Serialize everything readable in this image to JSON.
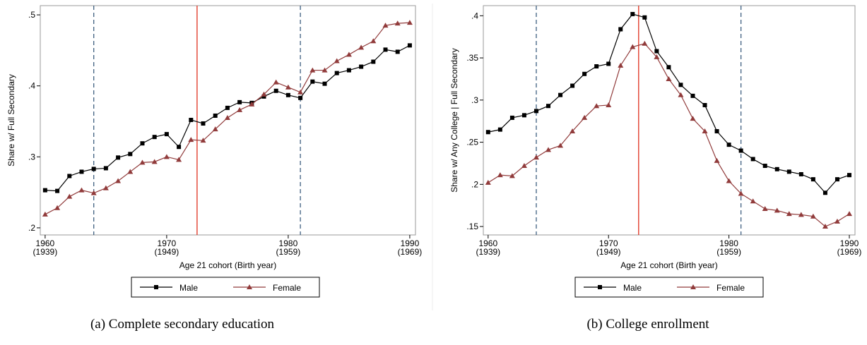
{
  "chart_data": [
    {
      "type": "line",
      "caption": "(a)  Complete secondary education",
      "y_label": "Share w/ Full Secondary",
      "x_label": "Age 21 cohort (Birth year)",
      "x": [
        1960,
        1961,
        1962,
        1963,
        1964,
        1965,
        1966,
        1967,
        1968,
        1969,
        1970,
        1971,
        1972,
        1973,
        1974,
        1975,
        1976,
        1977,
        1978,
        1979,
        1980,
        1981,
        1982,
        1983,
        1984,
        1985,
        1986,
        1987,
        1988,
        1989,
        1990
      ],
      "series": [
        {
          "name": "Male",
          "color": "#000000",
          "marker": "square",
          "values": [
            0.253,
            0.252,
            0.273,
            0.279,
            0.283,
            0.284,
            0.299,
            0.304,
            0.319,
            0.328,
            0.332,
            0.314,
            0.352,
            0.347,
            0.358,
            0.369,
            0.377,
            0.376,
            0.385,
            0.393,
            0.387,
            0.383,
            0.406,
            0.403,
            0.418,
            0.422,
            0.427,
            0.434,
            0.451,
            0.448,
            0.457
          ]
        },
        {
          "name": "Female",
          "color": "#913b3b",
          "marker": "triangle",
          "values": [
            0.219,
            0.228,
            0.244,
            0.253,
            0.249,
            0.256,
            0.266,
            0.279,
            0.292,
            0.293,
            0.3,
            0.296,
            0.324,
            0.323,
            0.339,
            0.355,
            0.366,
            0.374,
            0.388,
            0.405,
            0.398,
            0.391,
            0.422,
            0.422,
            0.435,
            0.444,
            0.454,
            0.463,
            0.485,
            0.488,
            0.489
          ]
        }
      ],
      "xlim": [
        1959.6,
        1990.47
      ],
      "ylim": [
        0.19,
        0.513
      ],
      "xticks": [
        {
          "value": 1960,
          "label": [
            "1960",
            "(1939)"
          ]
        },
        {
          "value": 1970,
          "label": [
            "1970",
            "(1949)"
          ]
        },
        {
          "value": 1980,
          "label": [
            "1980",
            "(1959)"
          ]
        },
        {
          "value": 1990,
          "label": [
            "1990",
            "(1969)"
          ]
        }
      ],
      "yticks": [
        {
          "value": 0.2,
          "label": ".2"
        },
        {
          "value": 0.3,
          "label": ".3"
        },
        {
          "value": 0.4,
          "label": ".4"
        },
        {
          "value": 0.5,
          "label": ".5"
        }
      ],
      "reference_lines": [
        {
          "x": 1964,
          "color": "#3e5f80",
          "style": "dashed"
        },
        {
          "x": 1972.5,
          "color": "#e0301e",
          "style": "solid"
        },
        {
          "x": 1981,
          "color": "#3e5f80",
          "style": "dashed"
        }
      ],
      "legend": "bottom"
    },
    {
      "type": "line",
      "caption": "(b)  College enrollment",
      "y_label": "Share w/ Any College | Full Secondary",
      "x_label": "Age 21 cohort (Birth year)",
      "x": [
        1960,
        1961,
        1962,
        1963,
        1964,
        1965,
        1966,
        1967,
        1968,
        1969,
        1970,
        1971,
        1972,
        1973,
        1974,
        1975,
        1976,
        1977,
        1978,
        1979,
        1980,
        1981,
        1982,
        1983,
        1984,
        1985,
        1986,
        1987,
        1988,
        1989,
        1990
      ],
      "series": [
        {
          "name": "Male",
          "color": "#000000",
          "marker": "square",
          "values": [
            0.262,
            0.265,
            0.279,
            0.282,
            0.287,
            0.293,
            0.306,
            0.317,
            0.331,
            0.34,
            0.343,
            0.384,
            0.402,
            0.398,
            0.358,
            0.339,
            0.318,
            0.305,
            0.294,
            0.263,
            0.247,
            0.24,
            0.23,
            0.222,
            0.218,
            0.215,
            0.212,
            0.206,
            0.19,
            0.206,
            0.211
          ]
        },
        {
          "name": "Female",
          "color": "#913b3b",
          "marker": "triangle",
          "values": [
            0.202,
            0.211,
            0.21,
            0.222,
            0.232,
            0.241,
            0.246,
            0.263,
            0.279,
            0.293,
            0.294,
            0.341,
            0.363,
            0.367,
            0.351,
            0.325,
            0.306,
            0.278,
            0.263,
            0.228,
            0.204,
            0.189,
            0.18,
            0.171,
            0.169,
            0.165,
            0.164,
            0.162,
            0.15,
            0.156,
            0.165
          ]
        }
      ],
      "xlim": [
        1959.6,
        1990.47
      ],
      "ylim": [
        0.14,
        0.412
      ],
      "xticks": [
        {
          "value": 1960,
          "label": [
            "1960",
            "(1939)"
          ]
        },
        {
          "value": 1970,
          "label": [
            "1970",
            "(1949)"
          ]
        },
        {
          "value": 1980,
          "label": [
            "1980",
            "(1959)"
          ]
        },
        {
          "value": 1990,
          "label": [
            "1990",
            "(1969)"
          ]
        }
      ],
      "yticks": [
        {
          "value": 0.15,
          "label": ".15"
        },
        {
          "value": 0.2,
          "label": ".2"
        },
        {
          "value": 0.25,
          "label": ".25"
        },
        {
          "value": 0.3,
          "label": ".3"
        },
        {
          "value": 0.35,
          "label": ".35"
        },
        {
          "value": 0.4,
          "label": ".4"
        }
      ],
      "reference_lines": [
        {
          "x": 1964,
          "color": "#3e5f80",
          "style": "dashed"
        },
        {
          "x": 1972.5,
          "color": "#e0301e",
          "style": "solid"
        },
        {
          "x": 1981,
          "color": "#3e5f80",
          "style": "dashed"
        }
      ],
      "legend": "bottom"
    }
  ]
}
